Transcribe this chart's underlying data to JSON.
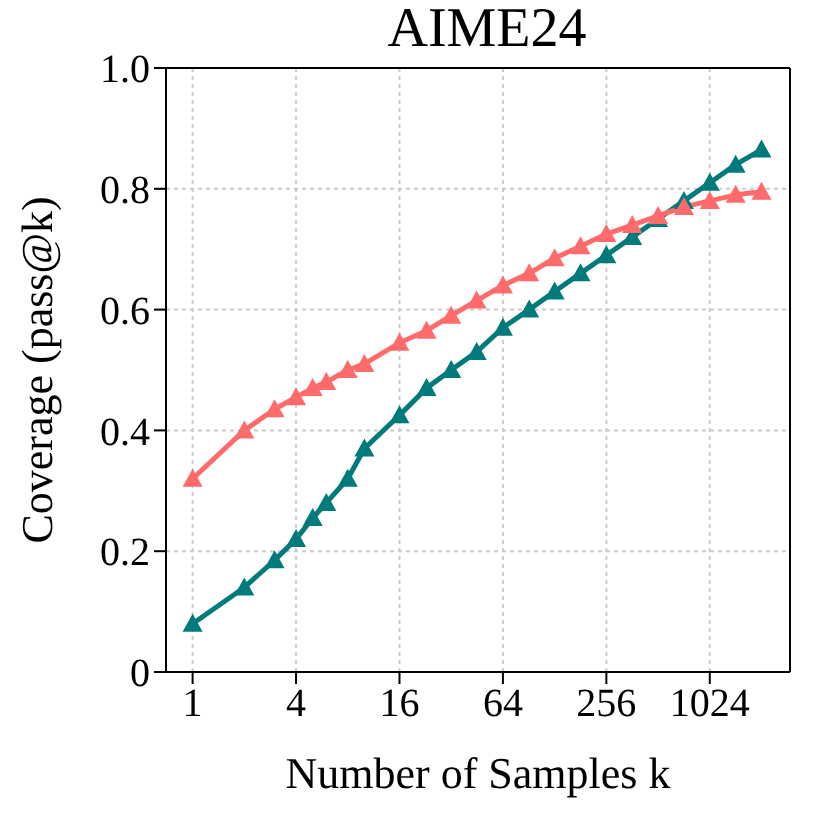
{
  "chart_data": {
    "type": "line",
    "title": "AIME24",
    "xlabel": "Number of Samples k",
    "ylabel": "Coverage (pass@k)",
    "x": [
      1,
      2,
      3,
      4,
      5,
      6,
      8,
      10,
      16,
      23,
      32,
      45,
      64,
      91,
      128,
      181,
      256,
      362,
      512,
      724,
      1024,
      1448,
      2048
    ],
    "series": [
      {
        "color": "#007a7a",
        "values": [
          0.08,
          0.14,
          0.185,
          0.22,
          0.255,
          0.28,
          0.32,
          0.37,
          0.425,
          0.47,
          0.5,
          0.53,
          0.57,
          0.6,
          0.63,
          0.66,
          0.69,
          0.72,
          0.75,
          0.78,
          0.81,
          0.84,
          0.865
        ]
      },
      {
        "color": "#ff6b6b",
        "values": [
          0.32,
          0.4,
          0.435,
          0.455,
          0.47,
          0.48,
          0.5,
          0.51,
          0.545,
          0.565,
          0.59,
          0.615,
          0.64,
          0.66,
          0.685,
          0.705,
          0.725,
          0.74,
          0.755,
          0.77,
          0.78,
          0.79,
          0.795
        ]
      }
    ],
    "log": "x",
    "xlim": [
      0.7,
      3000
    ],
    "xticks": [
      1,
      4,
      16,
      64,
      256,
      1024
    ],
    "ylim": [
      0,
      1
    ],
    "yticks": [
      0,
      0.2,
      0.4,
      0.6,
      0.8,
      {
        "value": 1,
        "label": "1.0"
      }
    ],
    "grid": true,
    "marker": "triangle",
    "line_style": "solid"
  }
}
